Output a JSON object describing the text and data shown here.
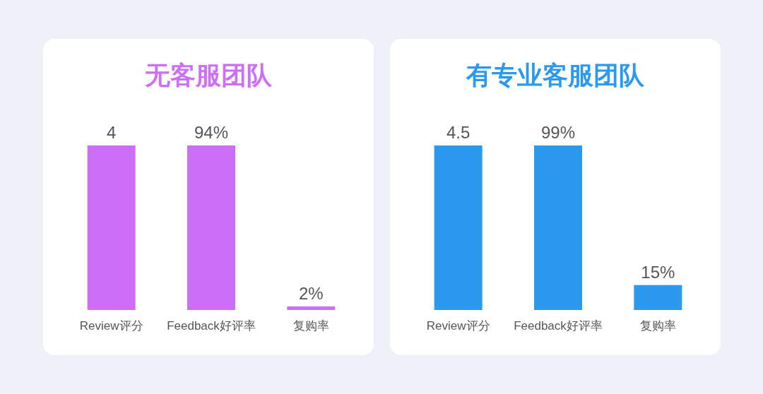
{
  "chart_data": [
    {
      "type": "bar",
      "title": "无客服团队",
      "categories": [
        "Review评分",
        "Feedback好评率",
        "复购率"
      ],
      "tick_labels": "x",
      "series": [
        {
          "color": "#cd6ef6",
          "values": [
            4,
            null,
            null
          ],
          "value_labels": [
            "4",
            null,
            null
          ]
        },
        {
          "color": "#cd6ef6",
          "axis": "y2",
          "values": [
            null,
            94,
            2
          ],
          "value_labels": [
            null,
            "94%",
            "2%"
          ]
        }
      ]
    },
    {
      "type": "bar",
      "title": "有专业客服团队",
      "categories": [
        "Review评分",
        "Feedback好评率",
        "复购率"
      ],
      "tick_labels": "x",
      "series": [
        {
          "color": "#2b9aee",
          "values": [
            4.5,
            null,
            null
          ],
          "value_labels": [
            "4.5",
            null,
            null
          ]
        },
        {
          "color": "#2b9aee",
          "axis": "y2",
          "values": [
            null,
            99,
            15
          ],
          "value_labels": [
            null,
            "99%",
            "15%"
          ]
        }
      ]
    }
  ]
}
